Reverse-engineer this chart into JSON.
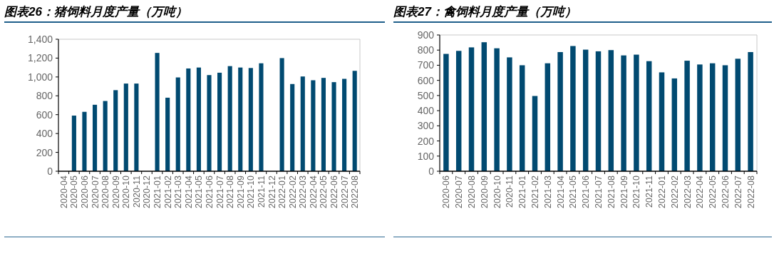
{
  "chart_data": [
    {
      "type": "bar",
      "title": "图表26：猪饲料月度产量（万吨）",
      "color": "#014a71",
      "categories": [
        "2020-04",
        "2020-05",
        "2020-06",
        "2020-07",
        "2020-08",
        "2020-09",
        "2020-10",
        "2020-11",
        "2020-12",
        "2021-01",
        "2021-02",
        "2021-03",
        "2021-04",
        "2021-05",
        "2021-06",
        "2021-07",
        "2021-08",
        "2021-09",
        "2021-10",
        "2021-11",
        "2021-12",
        "2022-01",
        "2022-02",
        "2022-03",
        "2022-04",
        "2022-05",
        "2022-06",
        "2022-07",
        "2022-08"
      ],
      "values": [
        null,
        590,
        630,
        705,
        745,
        860,
        930,
        930,
        null,
        1255,
        780,
        995,
        1090,
        1100,
        1020,
        1045,
        1115,
        1100,
        1095,
        1145,
        null,
        1200,
        925,
        1005,
        965,
        990,
        945,
        980,
        1065
      ],
      "ylim": [
        0,
        1400
      ],
      "yticks": [
        0,
        200,
        400,
        600,
        800,
        {
          "value": 1000,
          "label": "1,000"
        },
        {
          "value": 1200,
          "label": "1,200"
        },
        {
          "value": 1400,
          "label": "1,400"
        }
      ]
    },
    {
      "type": "bar",
      "title": "图表27：禽饲料月度产量（万吨）",
      "color": "#014a71",
      "categories": [
        "2020-06",
        "2020-07",
        "2020-08",
        "2020-09",
        "2020-10",
        "2020-11",
        "2021-01",
        "2021-02",
        "2021-03",
        "2021-04",
        "2021-05",
        "2021-06",
        "2021-07",
        "2021-08",
        "2021-09",
        "2021-10",
        "2021-11",
        "2022-01",
        "2022-02",
        "2022-03",
        "2022-04",
        "2022-05",
        "2022-06",
        "2022-07",
        "2022-08"
      ],
      "values": [
        775,
        795,
        818,
        852,
        812,
        752,
        700,
        497,
        713,
        787,
        827,
        803,
        792,
        800,
        765,
        770,
        727,
        653,
        613,
        730,
        705,
        713,
        700,
        743,
        787
      ],
      "ylim": [
        0,
        900
      ],
      "yticks": [
        0,
        100,
        200,
        300,
        400,
        500,
        600,
        700,
        800,
        900
      ]
    }
  ]
}
